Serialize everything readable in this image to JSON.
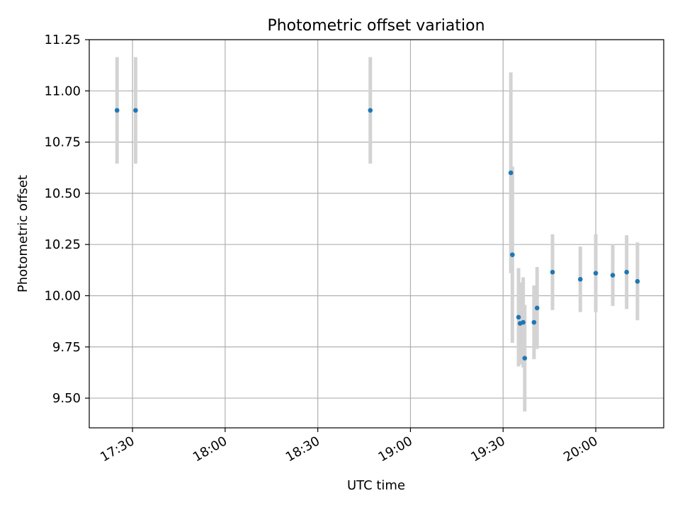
{
  "chart_data": {
    "type": "scatter",
    "title": "Photometric offset variation",
    "xlabel": "UTC time",
    "ylabel": "Photometric offset",
    "x_is_time": true,
    "xlim": [
      "17:16",
      "20:22"
    ],
    "ylim": [
      9.355,
      11.25
    ],
    "xticks": [
      "17:30",
      "18:00",
      "18:30",
      "19:00",
      "19:30",
      "20:00"
    ],
    "yticks": [
      9.5,
      9.75,
      10.0,
      10.25,
      10.5,
      10.75,
      11.0,
      11.25
    ],
    "ytick_labels": [
      "9.50",
      "9.75",
      "10.00",
      "10.25",
      "10.50",
      "10.75",
      "11.00",
      "11.25"
    ],
    "grid": true,
    "marker_color": "#1f77b4",
    "errorbar_color": "#d3d3d3",
    "points": [
      {
        "x": "17:25",
        "y": 10.905,
        "err": 0.26
      },
      {
        "x": "17:31",
        "y": 10.905,
        "err": 0.26
      },
      {
        "x": "18:47",
        "y": 10.905,
        "err": 0.26
      },
      {
        "x": "19:32:30",
        "y": 10.6,
        "err": 0.49
      },
      {
        "x": "19:33",
        "y": 10.2,
        "err": 0.43
      },
      {
        "x": "19:35",
        "y": 9.895,
        "err": 0.24
      },
      {
        "x": "19:35:30",
        "y": 9.865,
        "err": 0.2
      },
      {
        "x": "19:36:30",
        "y": 9.87,
        "err": 0.22
      },
      {
        "x": "19:37",
        "y": 9.695,
        "err": 0.26
      },
      {
        "x": "19:40",
        "y": 9.87,
        "err": 0.18
      },
      {
        "x": "19:41",
        "y": 9.94,
        "err": 0.2
      },
      {
        "x": "19:46",
        "y": 10.115,
        "err": 0.185
      },
      {
        "x": "19:55",
        "y": 10.08,
        "err": 0.16
      },
      {
        "x": "20:00",
        "y": 10.11,
        "err": 0.19
      },
      {
        "x": "20:05:30",
        "y": 10.1,
        "err": 0.15
      },
      {
        "x": "20:10",
        "y": 10.115,
        "err": 0.18
      },
      {
        "x": "20:13:30",
        "y": 10.07,
        "err": 0.19
      }
    ]
  }
}
